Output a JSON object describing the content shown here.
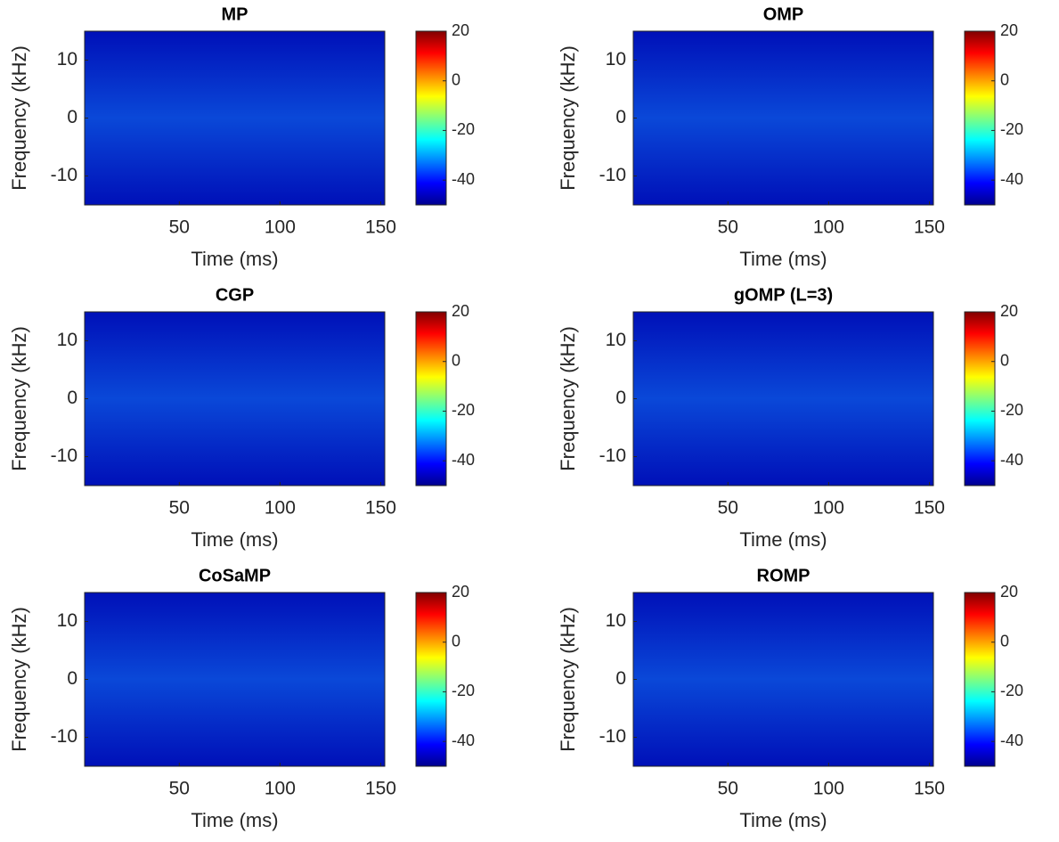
{
  "chart_data": [
    {
      "type": "spectrogram",
      "title": "MP",
      "xlabel": "Time (ms)",
      "ylabel": "Frequency (kHz)",
      "xlim": [
        3,
        152
      ],
      "ylim": [
        -15,
        15
      ],
      "xticks": [
        50,
        100,
        150
      ],
      "yticks": [
        -10,
        0,
        10
      ],
      "colormap": "jet",
      "colorbar": {
        "clim": [
          -50,
          20
        ],
        "ticks": [
          -40,
          -20,
          0,
          20
        ]
      }
    },
    {
      "type": "spectrogram",
      "title": "OMP",
      "xlabel": "Time (ms)",
      "ylabel": "Frequency (kHz)",
      "xlim": [
        3,
        152
      ],
      "ylim": [
        -15,
        15
      ],
      "xticks": [
        50,
        100,
        150
      ],
      "yticks": [
        -10,
        0,
        10
      ],
      "colormap": "jet",
      "colorbar": {
        "clim": [
          -50,
          20
        ],
        "ticks": [
          -40,
          -20,
          0,
          20
        ]
      }
    },
    {
      "type": "spectrogram",
      "title": "CGP",
      "xlabel": "Time (ms)",
      "ylabel": "Frequency (kHz)",
      "xlim": [
        3,
        152
      ],
      "ylim": [
        -15,
        15
      ],
      "xticks": [
        50,
        100,
        150
      ],
      "yticks": [
        -10,
        0,
        10
      ],
      "colormap": "jet",
      "colorbar": {
        "clim": [
          -50,
          20
        ],
        "ticks": [
          -40,
          -20,
          0,
          20
        ]
      }
    },
    {
      "type": "spectrogram",
      "title": "gOMP (L=3)",
      "xlabel": "Time (ms)",
      "ylabel": "Frequency (kHz)",
      "xlim": [
        3,
        152
      ],
      "ylim": [
        -15,
        15
      ],
      "xticks": [
        50,
        100,
        150
      ],
      "yticks": [
        -10,
        0,
        10
      ],
      "colormap": "jet",
      "colorbar": {
        "clim": [
          -50,
          20
        ],
        "ticks": [
          -40,
          -20,
          0,
          20
        ]
      }
    },
    {
      "type": "spectrogram",
      "title": "CoSaMP",
      "xlabel": "Time (ms)",
      "ylabel": "Frequency (kHz)",
      "xlim": [
        3,
        152
      ],
      "ylim": [
        -15,
        15
      ],
      "xticks": [
        50,
        100,
        150
      ],
      "yticks": [
        -10,
        0,
        10
      ],
      "colormap": "jet",
      "colorbar": {
        "clim": [
          -50,
          20
        ],
        "ticks": [
          -40,
          -20,
          0,
          20
        ]
      }
    },
    {
      "type": "spectrogram",
      "title": "ROMP",
      "xlabel": "Time (ms)",
      "ylabel": "Frequency (kHz)",
      "xlim": [
        3,
        152
      ],
      "ylim": [
        -15,
        15
      ],
      "xticks": [
        50,
        100,
        150
      ],
      "yticks": [
        -10,
        0,
        10
      ],
      "colormap": "jet",
      "colorbar": {
        "clim": [
          -50,
          20
        ],
        "ticks": [
          -40,
          -20,
          0,
          20
        ]
      }
    }
  ]
}
